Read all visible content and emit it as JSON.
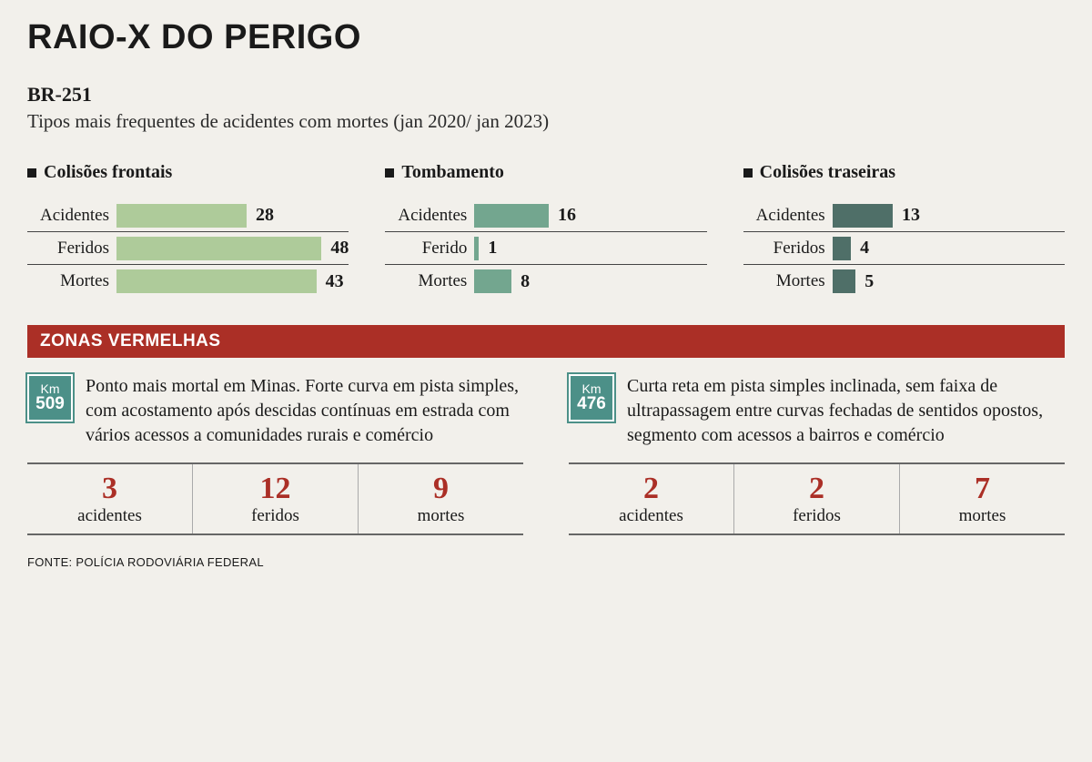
{
  "title": "RAIO-X DO PERIGO",
  "road": "BR-251",
  "subtitle": "Tipos mais frequentes de acidentes com mortes (jan 2020/ jan 2023)",
  "colors": {
    "page_bg": "#f2f0eb",
    "text": "#1a1a1a",
    "banner_bg": "#ab2f26",
    "banner_text": "#ffffff",
    "km_sign_bg": "#4c9088",
    "stat_number": "#ab2f26",
    "divider": "#444444"
  },
  "typography": {
    "title_fontsize": 38,
    "subtitle_fontsize": 21,
    "chart_title_fontsize": 20,
    "bar_label_fontsize": 19,
    "bar_value_fontsize": 20,
    "zone_desc_fontsize": 20,
    "stat_big_fontsize": 34,
    "stat_small_fontsize": 19,
    "source_fontsize": 13
  },
  "charts": {
    "max_value": 50,
    "colors": [
      "#aecb9a",
      "#73a68f",
      "#4f6f68"
    ],
    "groups": [
      {
        "title": "Colisões frontais",
        "rows": [
          {
            "label": "Acidentes",
            "value": 28
          },
          {
            "label": "Feridos",
            "value": 48
          },
          {
            "label": "Mortes",
            "value": 43
          }
        ]
      },
      {
        "title": "Tombamento",
        "rows": [
          {
            "label": "Acidentes",
            "value": 16
          },
          {
            "label": "Ferido",
            "value": 1
          },
          {
            "label": "Mortes",
            "value": 8
          }
        ]
      },
      {
        "title": "Colisões traseiras",
        "rows": [
          {
            "label": "Acidentes",
            "value": 13
          },
          {
            "label": "Feridos",
            "value": 4
          },
          {
            "label": "Mortes",
            "value": 5
          }
        ]
      }
    ]
  },
  "red_banner": "ZONAS VERMELHAS",
  "zones": [
    {
      "km_label": "Km",
      "km": "509",
      "desc": "Ponto mais mortal em Minas. Forte curva em pista simples, com acostamento após descidas contínuas em estrada com vários acessos a comunidades rurais e comércio",
      "stats": [
        {
          "num": "3",
          "label": "acidentes"
        },
        {
          "num": "12",
          "label": "feridos"
        },
        {
          "num": "9",
          "label": "mortes"
        }
      ]
    },
    {
      "km_label": "Km",
      "km": "476",
      "desc": "Curta reta em pista simples inclinada, sem faixa de ultrapassagem entre curvas fechadas de sentidos opostos, segmento com acessos a bairros e comércio",
      "stats": [
        {
          "num": "2",
          "label": "acidentes"
        },
        {
          "num": "2",
          "label": "feridos"
        },
        {
          "num": "7",
          "label": "mortes"
        }
      ]
    }
  ],
  "source": "FONTE: POLÍCIA RODOVIÁRIA FEDERAL"
}
